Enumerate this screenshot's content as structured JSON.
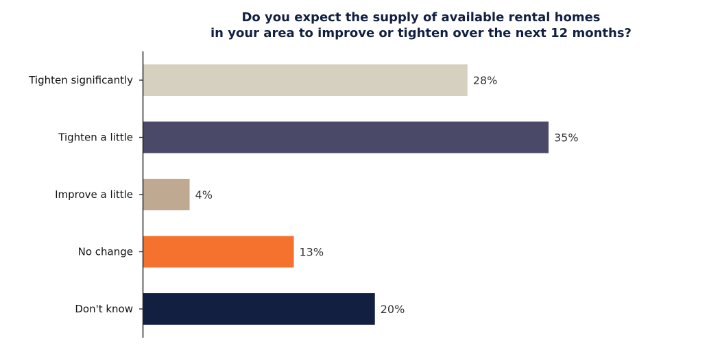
{
  "chart_data": {
    "type": "bar",
    "orientation": "horizontal",
    "title": [
      "Do you expect the supply of available rental homes",
      "in your area to improve or tighten over the next 12 months?"
    ],
    "categories": [
      "Tighten significantly",
      "Tighten a little",
      "Improve a little",
      "No change",
      "Don't know"
    ],
    "values": [
      28,
      35,
      4,
      13,
      20
    ],
    "data_labels": [
      "28%",
      "35%",
      "4%",
      "13%",
      "20%"
    ],
    "colors": [
      "#d6d0c0",
      "#4a4a68",
      "#bfa991",
      "#f4722e",
      "#121f40"
    ],
    "xlabel": "",
    "ylabel": "",
    "xlim": [
      0,
      35
    ],
    "grid": false,
    "legend": "none"
  }
}
